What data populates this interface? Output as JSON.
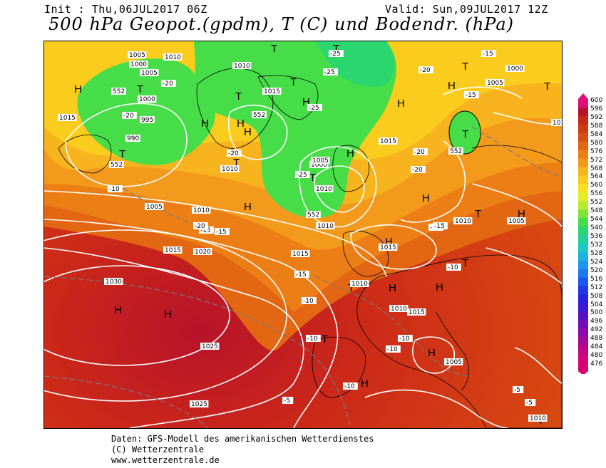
{
  "header": {
    "init": "Init : Thu,06JUL2017 06Z",
    "valid": "Valid: Sun,09JUL2017 12Z",
    "title": "500 hPa Geopot.(gpdm), T (C) und Bodendr. (hPa)"
  },
  "map": {
    "pressure_centers": [
      {
        "kind": "H",
        "note": "high"
      },
      {
        "kind": "T",
        "note": "low"
      }
    ],
    "high_symbol": "H",
    "low_symbol": "T",
    "isobar_labels": [
      "1005",
      "1010",
      "1000",
      "1005",
      "1010",
      "1015",
      "1020",
      "1025",
      "1030",
      "995",
      "990",
      "1000",
      "1015",
      "1010",
      "1005",
      "1010",
      "1015",
      "1020",
      "1025",
      "1030",
      "1025",
      "1015",
      "1010",
      "1015",
      "1010",
      "1010",
      "1005",
      "1000",
      "1005",
      "1010",
      "1015",
      "1010",
      "1015",
      "1005",
      "1000",
      "1005",
      "1010",
      "1010"
    ],
    "temp_labels": [
      "-25",
      "-25",
      "-20",
      "-25",
      "-20",
      "-15",
      "-20",
      "-20",
      "-15",
      "-10",
      "-15",
      "-10",
      "-10",
      "-15",
      "-10",
      "-5",
      "-10",
      "-10",
      "-5",
      "-5",
      "-10",
      "-15",
      "-20",
      "-25",
      "-15",
      "-20",
      "-15",
      "-20",
      "-15",
      "-5"
    ],
    "geopot_labels": [
      "552",
      "552",
      "552",
      "552",
      "552"
    ],
    "colors": {
      "ocean_warm": "#c8341c",
      "orange": "#f07d20",
      "yellow": "#f5d61a",
      "green": "#2ee05b",
      "isobar": "#ffffff"
    }
  },
  "scale": {
    "levels": [
      "600",
      "596",
      "592",
      "588",
      "584",
      "580",
      "576",
      "572",
      "568",
      "564",
      "560",
      "556",
      "552",
      "548",
      "544",
      "540",
      "536",
      "532",
      "528",
      "524",
      "520",
      "516",
      "512",
      "508",
      "504",
      "500",
      "496",
      "492",
      "488",
      "484",
      "480",
      "476"
    ],
    "colors": [
      "#e0107a",
      "#b8122a",
      "#c42816",
      "#cf3a12",
      "#d94e10",
      "#e36612",
      "#ec7e16",
      "#f39a1c",
      "#f7b41e",
      "#f9cc1e",
      "#f9e022",
      "#e6ec2a",
      "#b7ea30",
      "#7ee438",
      "#46dd48",
      "#2cd66e",
      "#22d09a",
      "#1ec8c2",
      "#1cb4de",
      "#1a98ec",
      "#1a78f0",
      "#1c58ee",
      "#2038e8",
      "#2820e0",
      "#3a18d4",
      "#5410c6",
      "#6e0cb8",
      "#8c08a8",
      "#a80696",
      "#c00484",
      "#d0047a",
      "#d80474"
    ],
    "swatch_count": 32
  },
  "footer": {
    "line1": "Daten: GFS-Modell des amerikanischen Wetterdienstes",
    "line2": "(C) Wetterzentrale",
    "line3": "www.wetterzentrale.de"
  }
}
